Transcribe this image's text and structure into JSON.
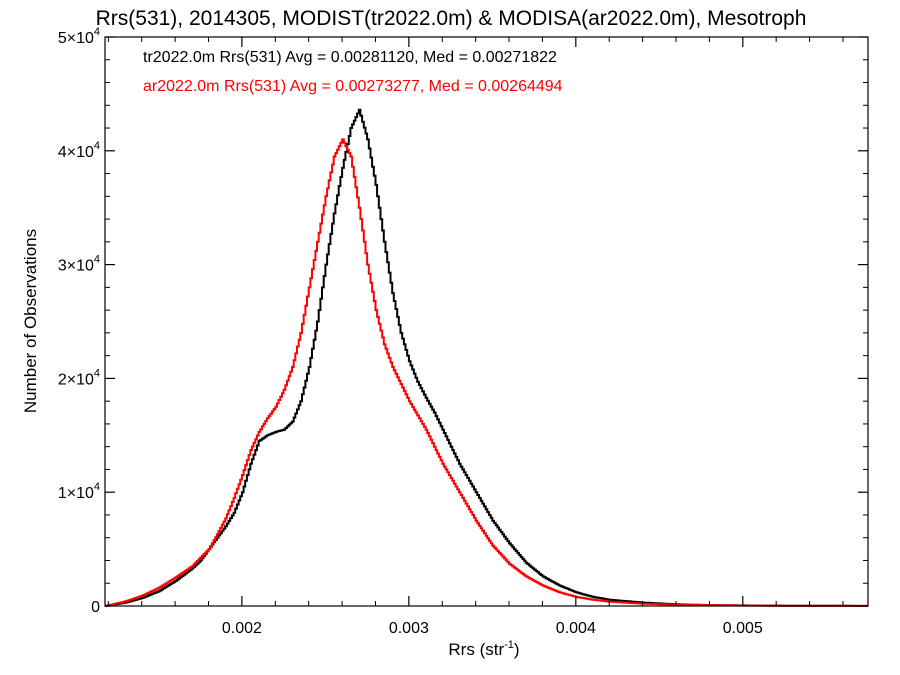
{
  "chart_data": {
    "type": "line",
    "title": "Rrs(531), 2014305, MODIST(tr2022.0m) & MODISA(ar2022.0m), Mesotroph",
    "xlabel": "Rrs (str",
    "xlabel_sup": "-1",
    "xlabel_tail": ")",
    "ylabel": "Number of Observations",
    "xlim": [
      0.00118,
      0.00575
    ],
    "ylim": [
      0,
      50000
    ],
    "x_ticks": [
      {
        "value": 0.002,
        "label": "0.002"
      },
      {
        "value": 0.003,
        "label": "0.003"
      },
      {
        "value": 0.004,
        "label": "0.004"
      },
      {
        "value": 0.005,
        "label": "0.005"
      }
    ],
    "y_ticks": [
      {
        "value": 0,
        "label": "0",
        "exp": ""
      },
      {
        "value": 10000,
        "label": "1×10",
        "exp": "4"
      },
      {
        "value": 20000,
        "label": "2×10",
        "exp": "4"
      },
      {
        "value": 30000,
        "label": "3×10",
        "exp": "4"
      },
      {
        "value": 40000,
        "label": "4×10",
        "exp": "4"
      },
      {
        "value": 50000,
        "label": "5×10",
        "exp": "4"
      }
    ],
    "annotations": [
      {
        "text": "tr2022.0m Rrs(531) Avg = 0.00281120, Med = 0.00271822",
        "color": "#000000"
      },
      {
        "text": "ar2022.0m Rrs(531) Avg = 0.00273277, Med = 0.00264494",
        "color": "#ff0000"
      }
    ],
    "grid": false,
    "series": [
      {
        "color": "#000000",
        "points": [
          [
            0.00118,
            0
          ],
          [
            0.0013,
            300
          ],
          [
            0.0014,
            700
          ],
          [
            0.0015,
            1300
          ],
          [
            0.0016,
            2200
          ],
          [
            0.0017,
            3300
          ],
          [
            0.00175,
            4000
          ],
          [
            0.0018,
            5000
          ],
          [
            0.00185,
            6000
          ],
          [
            0.0019,
            7000
          ],
          [
            0.00195,
            8200
          ],
          [
            0.002,
            10000
          ],
          [
            0.00205,
            12500
          ],
          [
            0.0021,
            14500
          ],
          [
            0.00215,
            15000
          ],
          [
            0.0022,
            15300
          ],
          [
            0.00225,
            15500
          ],
          [
            0.0023,
            16200
          ],
          [
            0.00235,
            18000
          ],
          [
            0.0024,
            21000
          ],
          [
            0.00245,
            25000
          ],
          [
            0.0025,
            30000
          ],
          [
            0.00255,
            34500
          ],
          [
            0.0026,
            38500
          ],
          [
            0.00265,
            42000
          ],
          [
            0.0027,
            43600
          ],
          [
            0.00275,
            41000
          ],
          [
            0.0028,
            37000
          ],
          [
            0.00285,
            32000
          ],
          [
            0.0029,
            27500
          ],
          [
            0.00295,
            24000
          ],
          [
            0.003,
            21500
          ],
          [
            0.00305,
            19700
          ],
          [
            0.0031,
            18300
          ],
          [
            0.00315,
            17000
          ],
          [
            0.0032,
            15500
          ],
          [
            0.0033,
            12500
          ],
          [
            0.0034,
            10000
          ],
          [
            0.0035,
            7500
          ],
          [
            0.0036,
            5500
          ],
          [
            0.0037,
            3800
          ],
          [
            0.0038,
            2600
          ],
          [
            0.0039,
            1800
          ],
          [
            0.004,
            1200
          ],
          [
            0.0041,
            800
          ],
          [
            0.0042,
            550
          ],
          [
            0.0044,
            300
          ],
          [
            0.0046,
            150
          ],
          [
            0.0048,
            80
          ],
          [
            0.005,
            50
          ],
          [
            0.0053,
            25
          ],
          [
            0.00575,
            10
          ]
        ]
      },
      {
        "color": "#ff0000",
        "points": [
          [
            0.00118,
            0
          ],
          [
            0.0013,
            400
          ],
          [
            0.0014,
            900
          ],
          [
            0.0015,
            1600
          ],
          [
            0.0016,
            2500
          ],
          [
            0.0017,
            3500
          ],
          [
            0.0018,
            5000
          ],
          [
            0.00185,
            6300
          ],
          [
            0.0019,
            7700
          ],
          [
            0.00195,
            9500
          ],
          [
            0.002,
            11500
          ],
          [
            0.00205,
            13700
          ],
          [
            0.0021,
            15300
          ],
          [
            0.00215,
            16500
          ],
          [
            0.0022,
            17500
          ],
          [
            0.00225,
            19000
          ],
          [
            0.0023,
            21000
          ],
          [
            0.00235,
            24000
          ],
          [
            0.0024,
            28000
          ],
          [
            0.00245,
            32000
          ],
          [
            0.0025,
            36000
          ],
          [
            0.00255,
            39500
          ],
          [
            0.0026,
            41000
          ],
          [
            0.00265,
            39500
          ],
          [
            0.0027,
            35000
          ],
          [
            0.00275,
            30000
          ],
          [
            0.0028,
            26000
          ],
          [
            0.00285,
            23000
          ],
          [
            0.0029,
            21000
          ],
          [
            0.003,
            18000
          ],
          [
            0.0031,
            15500
          ],
          [
            0.0032,
            12500
          ],
          [
            0.0033,
            10000
          ],
          [
            0.0034,
            7500
          ],
          [
            0.0035,
            5300
          ],
          [
            0.0036,
            3700
          ],
          [
            0.0037,
            2600
          ],
          [
            0.0038,
            1800
          ],
          [
            0.0039,
            1200
          ],
          [
            0.004,
            800
          ],
          [
            0.0041,
            550
          ],
          [
            0.0042,
            380
          ],
          [
            0.0044,
            200
          ],
          [
            0.0046,
            120
          ],
          [
            0.0048,
            70
          ],
          [
            0.005,
            40
          ],
          [
            0.0053,
            20
          ],
          [
            0.00575,
            10
          ]
        ]
      }
    ]
  }
}
